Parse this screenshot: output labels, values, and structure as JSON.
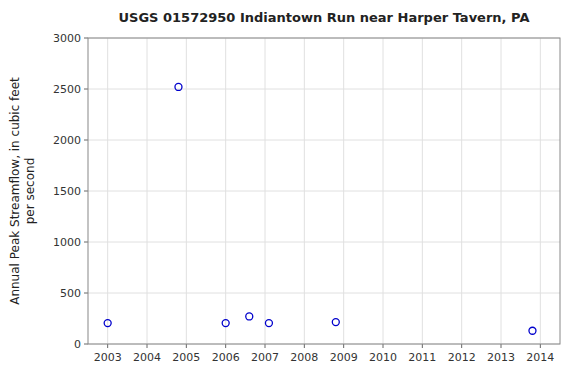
{
  "chart_data": {
    "type": "scatter",
    "title": "USGS 01572950 Indiantown Run near Harper Tavern, PA",
    "ylabel": "Annual Peak Streamflow, in cubic feet\nper second",
    "x": [
      2003.0,
      2004.8,
      2006.0,
      2006.6,
      2007.1,
      2008.8,
      2013.8
    ],
    "values": [
      205,
      2520,
      205,
      270,
      205,
      215,
      130
    ],
    "color": "#0000cc",
    "marker": "circle",
    "xlim": [
      2002.5,
      2014.5
    ],
    "ylim": [
      0,
      3000
    ],
    "xticks": [
      2003,
      2004,
      2005,
      2006,
      2007,
      2008,
      2009,
      2010,
      2011,
      2012,
      2013,
      2014
    ],
    "yticks": [
      0,
      500,
      1000,
      1500,
      2000,
      2500,
      3000
    ],
    "grid": true
  }
}
